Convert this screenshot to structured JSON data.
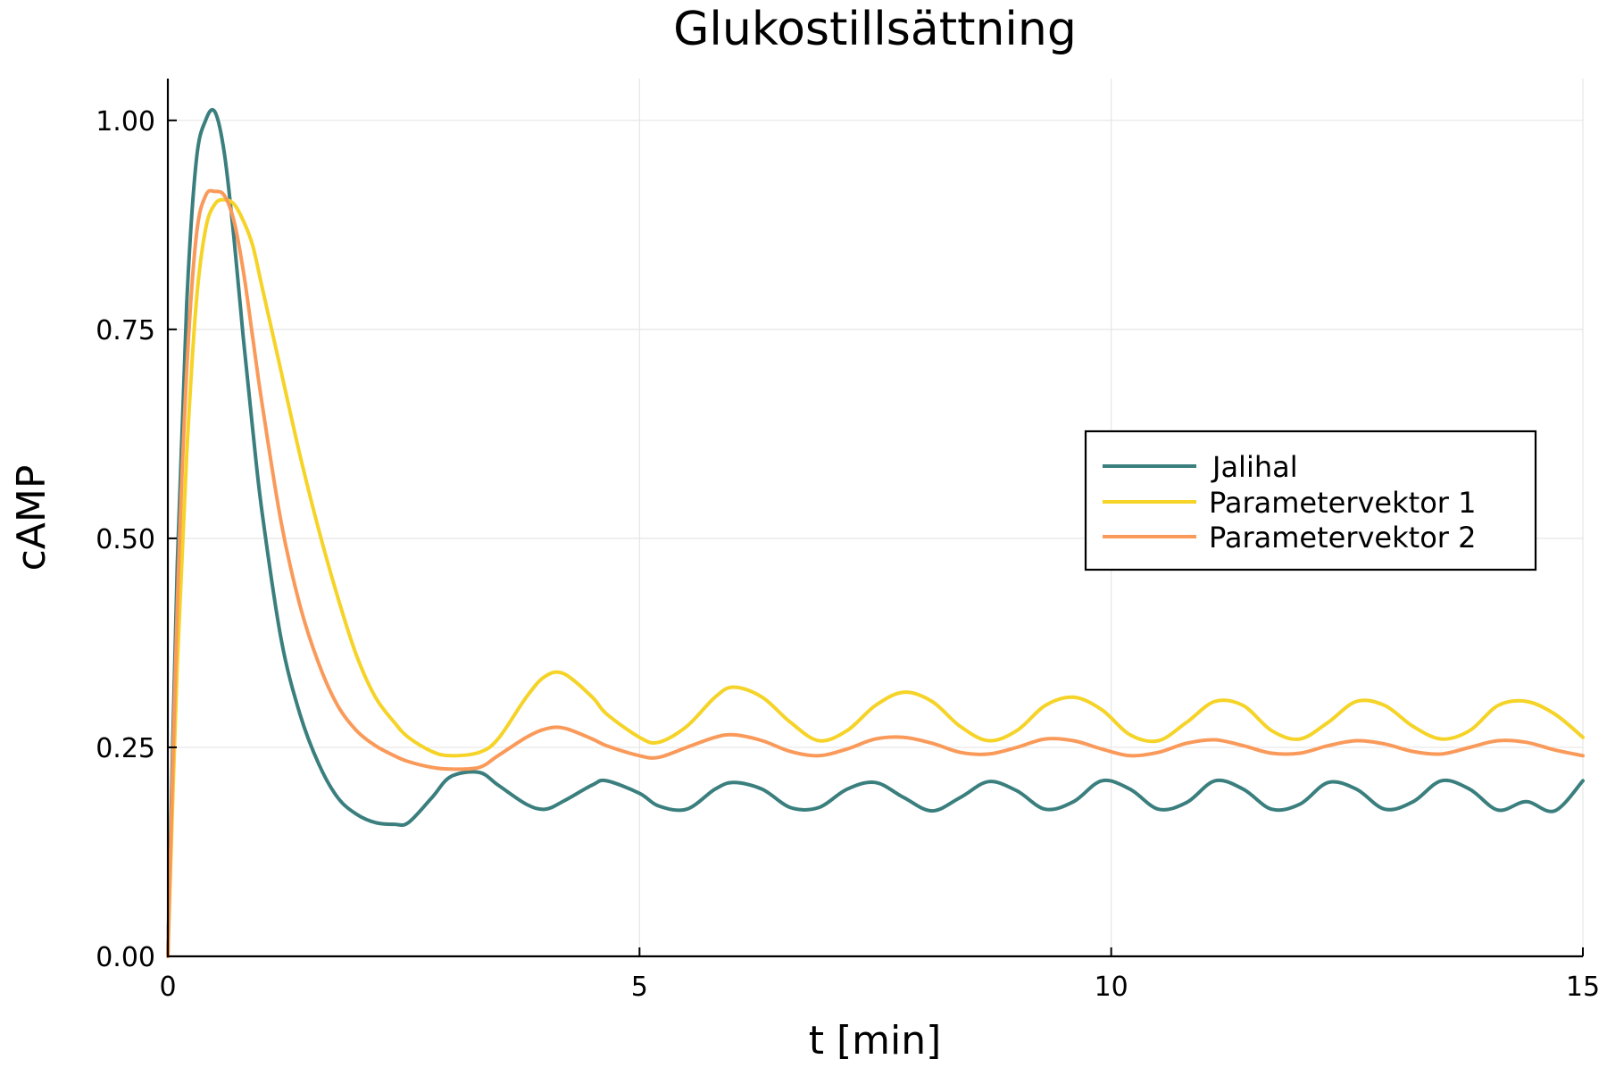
{
  "chart_data": {
    "type": "line",
    "title": "Glukostillsättning",
    "xlabel": "t [min]",
    "ylabel": "cAMP",
    "xlim": [
      0,
      15
    ],
    "ylim": [
      0,
      1.05
    ],
    "x_ticks": [
      0,
      5,
      10,
      15
    ],
    "x_tick_labels": [
      "0",
      "5",
      "10",
      "15"
    ],
    "y_ticks": [
      0,
      0.25,
      0.5,
      0.75,
      1.0
    ],
    "y_tick_labels": [
      "0.00",
      "0.25",
      "0.50",
      "0.75",
      "1.00"
    ],
    "grid": true,
    "legend_position": "right",
    "x": [
      0,
      0.1,
      0.2,
      0.3,
      0.4,
      0.5,
      0.6,
      0.7,
      0.8,
      0.9,
      1.0,
      1.2,
      1.4,
      1.6,
      1.8,
      2.0,
      2.2,
      2.4,
      2.55,
      2.8,
      3.0,
      3.3,
      3.5,
      3.8,
      4.0,
      4.2,
      4.5,
      4.65,
      5.0,
      5.2,
      5.5,
      5.8,
      6.0,
      6.3,
      6.6,
      6.9,
      7.2,
      7.5,
      7.8,
      8.1,
      8.4,
      8.7,
      9.0,
      9.3,
      9.6,
      9.9,
      10.2,
      10.5,
      10.8,
      11.1,
      11.4,
      11.7,
      12.0,
      12.3,
      12.6,
      12.9,
      13.2,
      13.5,
      13.8,
      14.1,
      14.4,
      14.7,
      15.0
    ],
    "series": [
      {
        "name": "Jalihal",
        "color": "#3a7f7e",
        "values": [
          0,
          0.47,
          0.78,
          0.95,
          1.0,
          1.01,
          0.96,
          0.86,
          0.74,
          0.63,
          0.53,
          0.38,
          0.29,
          0.23,
          0.19,
          0.17,
          0.16,
          0.158,
          0.16,
          0.19,
          0.215,
          0.22,
          0.205,
          0.182,
          0.176,
          0.186,
          0.205,
          0.21,
          0.195,
          0.18,
          0.176,
          0.2,
          0.208,
          0.2,
          0.178,
          0.178,
          0.2,
          0.208,
          0.19,
          0.174,
          0.19,
          0.209,
          0.198,
          0.176,
          0.185,
          0.21,
          0.2,
          0.176,
          0.184,
          0.21,
          0.2,
          0.176,
          0.182,
          0.208,
          0.2,
          0.176,
          0.185,
          0.21,
          0.2,
          0.175,
          0.185,
          0.174,
          0.21
        ]
      },
      {
        "name": "Parametervektor 1",
        "color": "#f5d327",
        "values": [
          0,
          0.35,
          0.6,
          0.78,
          0.87,
          0.9,
          0.905,
          0.9,
          0.88,
          0.85,
          0.8,
          0.7,
          0.6,
          0.51,
          0.43,
          0.36,
          0.31,
          0.28,
          0.262,
          0.245,
          0.24,
          0.244,
          0.26,
          0.31,
          0.335,
          0.338,
          0.31,
          0.29,
          0.262,
          0.256,
          0.275,
          0.31,
          0.322,
          0.31,
          0.28,
          0.258,
          0.27,
          0.3,
          0.316,
          0.305,
          0.275,
          0.258,
          0.27,
          0.3,
          0.31,
          0.295,
          0.265,
          0.258,
          0.28,
          0.305,
          0.3,
          0.27,
          0.26,
          0.28,
          0.305,
          0.3,
          0.275,
          0.26,
          0.27,
          0.3,
          0.305,
          0.29,
          0.262
        ]
      },
      {
        "name": "Parametervektor 2",
        "color": "#fa9a5a",
        "values": [
          0,
          0.42,
          0.7,
          0.86,
          0.91,
          0.915,
          0.91,
          0.88,
          0.82,
          0.74,
          0.66,
          0.52,
          0.42,
          0.35,
          0.3,
          0.27,
          0.252,
          0.24,
          0.233,
          0.226,
          0.224,
          0.226,
          0.24,
          0.262,
          0.272,
          0.273,
          0.26,
          0.252,
          0.24,
          0.238,
          0.25,
          0.262,
          0.265,
          0.258,
          0.245,
          0.24,
          0.248,
          0.26,
          0.262,
          0.255,
          0.244,
          0.242,
          0.25,
          0.26,
          0.258,
          0.248,
          0.24,
          0.244,
          0.255,
          0.259,
          0.252,
          0.243,
          0.243,
          0.252,
          0.258,
          0.254,
          0.245,
          0.242,
          0.25,
          0.258,
          0.256,
          0.247,
          0.24
        ]
      }
    ]
  }
}
